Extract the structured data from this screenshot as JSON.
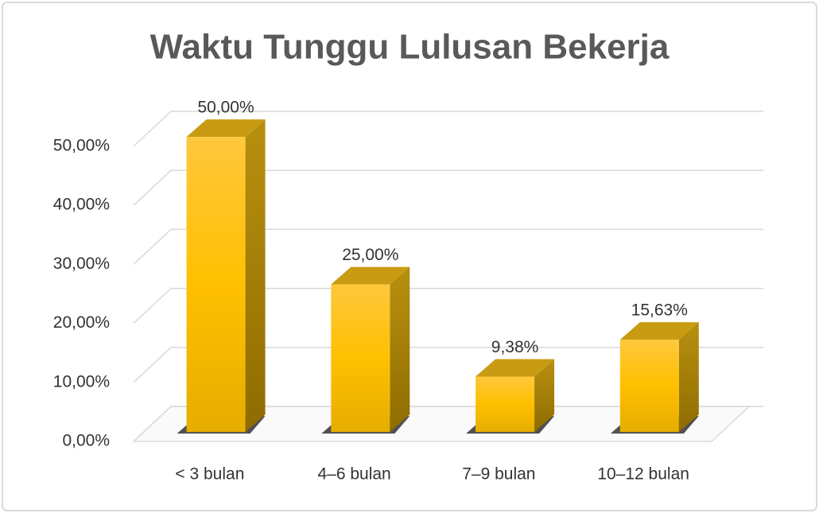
{
  "chart_data": {
    "type": "bar3d",
    "title": "Waktu Tunggu Lulusan Bekerja",
    "categories": [
      "< 3 bulan",
      "4–6 bulan",
      "7–9 bulan",
      "10–12 bulan"
    ],
    "values": [
      50,
      25,
      9.38,
      15.63
    ],
    "value_labels": [
      "50,00%",
      "25,00%",
      "9,38%",
      "15,63%"
    ],
    "color": "#ffc000",
    "ylim": [
      0,
      50
    ],
    "yticks": [
      {
        "value": 0,
        "label": "0,00%"
      },
      {
        "value": 10,
        "label": "10,00%"
      },
      {
        "value": 20,
        "label": "20,00%"
      },
      {
        "value": 30,
        "label": "30,00%"
      },
      {
        "value": 40,
        "label": "40,00%"
      },
      {
        "value": 50,
        "label": "50,00%"
      }
    ],
    "grid": true
  }
}
